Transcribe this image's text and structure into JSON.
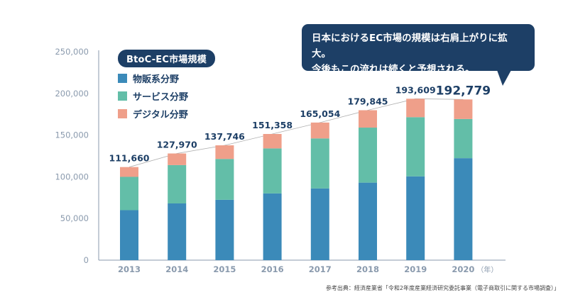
{
  "chart_data": {
    "type": "bar",
    "stacked": true,
    "title": "BtoC-EC市場規模",
    "categories": [
      "2013",
      "2014",
      "2015",
      "2016",
      "2017",
      "2018",
      "2019",
      "2020"
    ],
    "x_unit": "（年）",
    "series": [
      {
        "name": "物販系分野",
        "color": "#3b8ab9",
        "values": [
          59931,
          68043,
          72398,
          80043,
          86008,
          92992,
          100515,
          122333
        ]
      },
      {
        "name": "サービス分野",
        "color": "#63bea8",
        "values": [
          40000,
          46000,
          49000,
          54000,
          60000,
          66000,
          71000,
          47000
        ]
      },
      {
        "name": "デジタル分野",
        "color": "#ef9f8a",
        "values": [
          11729,
          13927,
          16348,
          17315,
          19046,
          20853,
          22093,
          23446
        ]
      }
    ],
    "totals": [
      "111,660",
      "127,970",
      "137,746",
      "151,358",
      "165,054",
      "179,845",
      "193,609",
      "192,779"
    ],
    "totals_values": [
      111660,
      127970,
      137746,
      151358,
      165054,
      179845,
      193609,
      192779
    ],
    "y_ticks": [
      "0",
      "50,000",
      "100,000",
      "150,000",
      "200,000",
      "250,000"
    ],
    "y_tick_values": [
      0,
      50000,
      100000,
      150000,
      200000,
      250000
    ],
    "ylim": [
      0,
      250000
    ],
    "grid": false,
    "trend_line": true,
    "legend_position": "top-left"
  },
  "callout": {
    "line1": "日本におけるEC市場の規模は右肩上がりに拡大。",
    "line2": "今後もこの流れは続くと予想される。"
  },
  "source": "参考出典：経済産業省「令和2年度産業経済研究委託事業（電子商取引に関する市場調査）」",
  "colors": {
    "axis_text": "#8a9aad",
    "label_text": "#1d3f66",
    "axis_line": "#8a9aad",
    "trend": "#b0b0b0"
  }
}
